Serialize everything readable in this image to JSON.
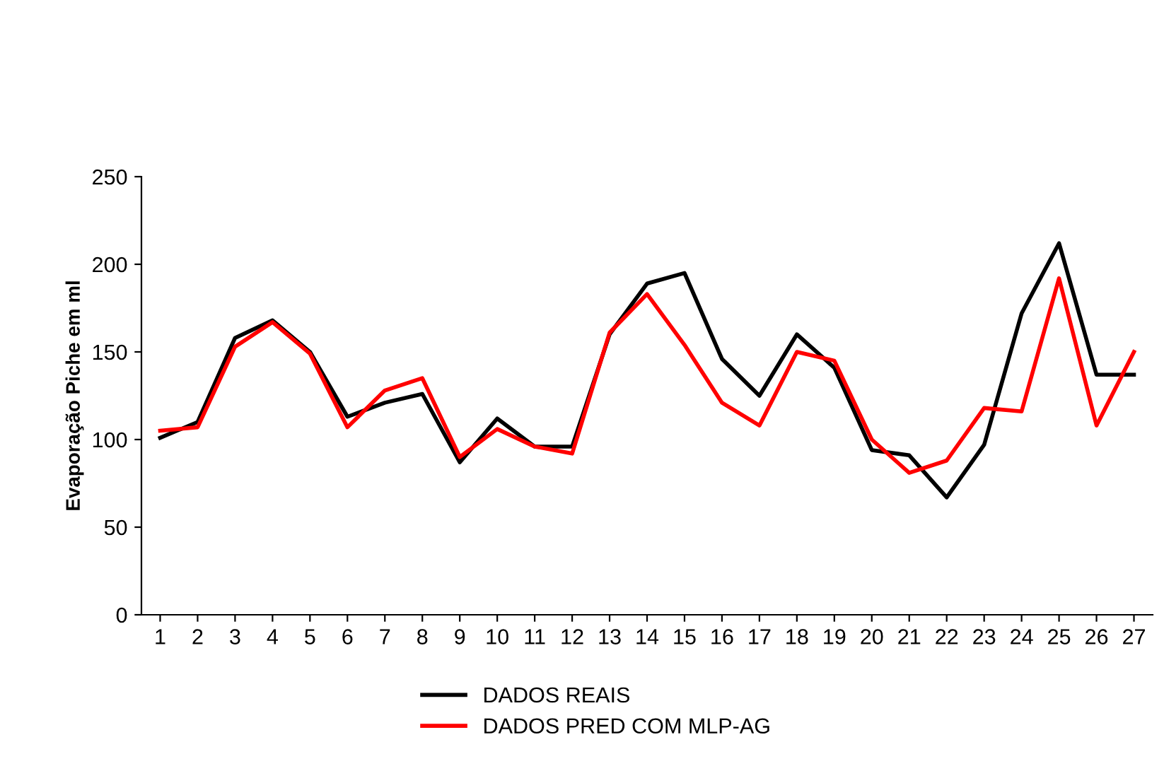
{
  "chart_data": {
    "type": "line",
    "ylabel": "Evaporação Piche em ml",
    "categories": [
      "1",
      "2",
      "3",
      "4",
      "5",
      "6",
      "7",
      "8",
      "9",
      "10",
      "11",
      "12",
      "13",
      "14",
      "15",
      "16",
      "17",
      "18",
      "19",
      "20",
      "21",
      "22",
      "23",
      "24",
      "25",
      "26",
      "27"
    ],
    "series": [
      {
        "name": "DADOS REAIS",
        "color": "#000000",
        "values": [
          101,
          110,
          158,
          168,
          150,
          113,
          121,
          126,
          87,
          112,
          96,
          96,
          160,
          189,
          195,
          146,
          125,
          160,
          141,
          94,
          91,
          67,
          97,
          172,
          212,
          137,
          137
        ]
      },
      {
        "name": "DADOS PRED COM MLP-AG",
        "color": "#ff0000",
        "values": [
          105,
          107,
          153,
          167,
          149,
          107,
          128,
          135,
          90,
          106,
          96,
          92,
          161,
          183,
          154,
          121,
          108,
          150,
          145,
          100,
          81,
          88,
          118,
          116,
          192,
          108,
          150
        ]
      }
    ],
    "ylim": [
      0,
      250
    ],
    "yticks": [
      0,
      50,
      100,
      150,
      200,
      250
    ],
    "grid": false,
    "legend": "bottom",
    "marker": "none",
    "line_style": "solid"
  }
}
